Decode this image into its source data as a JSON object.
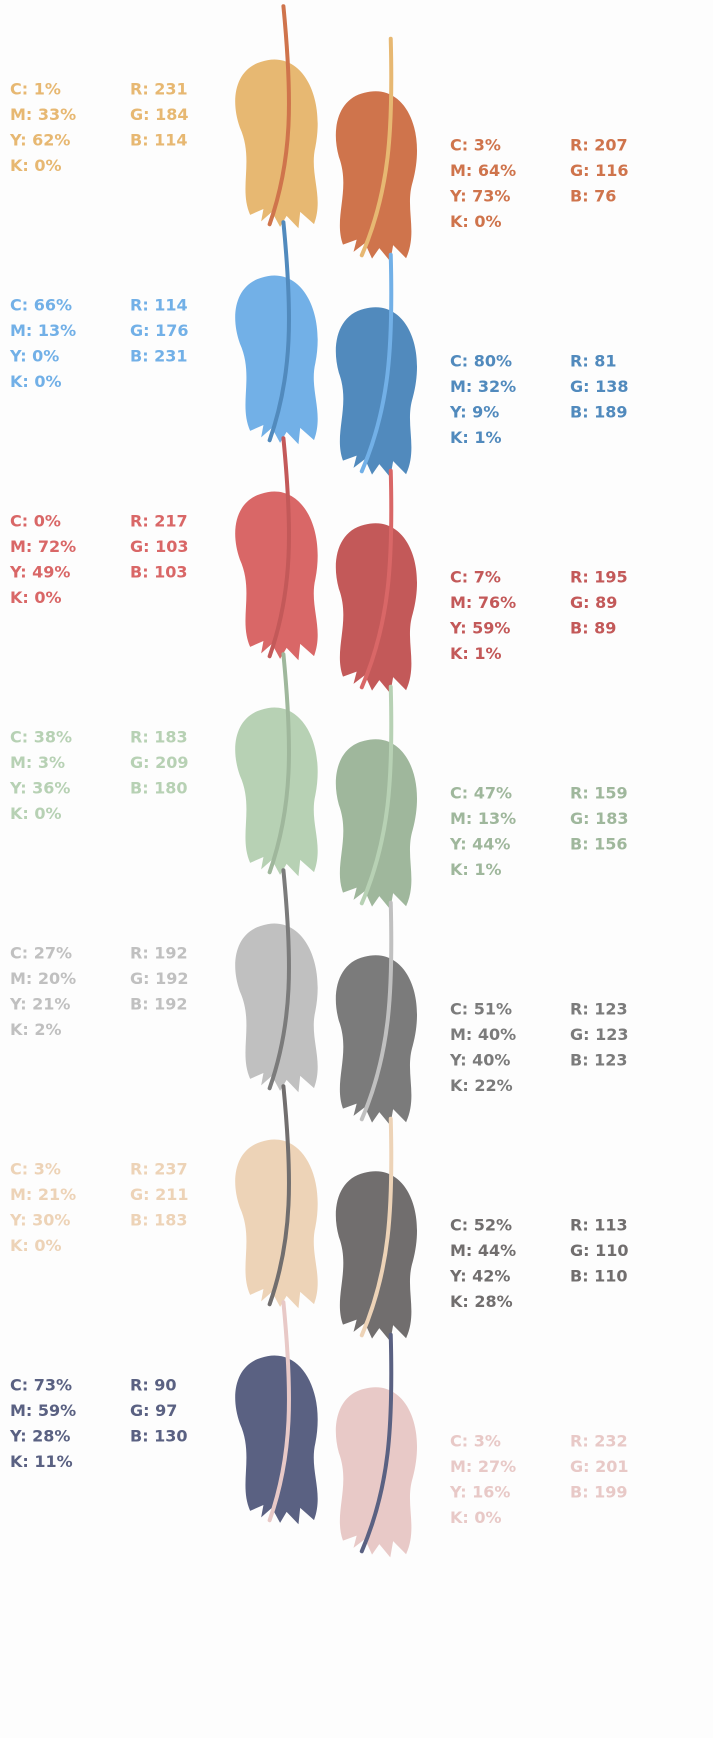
{
  "rows": [
    {
      "left": {
        "color": "#e7b872",
        "cmyk": [
          "C: 1%",
          "M: 33%",
          "Y: 62%",
          "K: 0%"
        ],
        "rgb": [
          "R: 231",
          "G: 184",
          "B: 114"
        ]
      },
      "right": {
        "color": "#cf744c",
        "cmyk": [
          "C: 3%",
          "M: 64%",
          "Y: 73%",
          "K: 0%"
        ],
        "rgb": [
          "R: 207",
          "G: 116",
          "B: 76"
        ]
      }
    },
    {
      "left": {
        "color": "#72b0e7",
        "cmyk": [
          "C: 66%",
          "M: 13%",
          "Y: 0%",
          "K: 0%"
        ],
        "rgb": [
          "R: 114",
          "G: 176",
          "B: 231"
        ]
      },
      "right": {
        "color": "#518abd",
        "cmyk": [
          "C: 80%",
          "M: 32%",
          "Y: 9%",
          "K: 1%"
        ],
        "rgb": [
          "R: 81",
          "G: 138",
          "B: 189"
        ]
      }
    },
    {
      "left": {
        "color": "#d96767",
        "cmyk": [
          "C: 0%",
          "M: 72%",
          "Y: 49%",
          "K: 0%"
        ],
        "rgb": [
          "R: 217",
          "G: 103",
          "B: 103"
        ]
      },
      "right": {
        "color": "#c35959",
        "cmyk": [
          "C: 7%",
          "M: 76%",
          "Y: 59%",
          "K: 1%"
        ],
        "rgb": [
          "R: 195",
          "G: 89",
          "B: 89"
        ]
      }
    },
    {
      "left": {
        "color": "#b7d1b4",
        "cmyk": [
          "C: 38%",
          "M: 3%",
          "Y: 36%",
          "K: 0%"
        ],
        "rgb": [
          "R: 183",
          "G: 209",
          "B: 180"
        ]
      },
      "right": {
        "color": "#9fb79c",
        "cmyk": [
          "C: 47%",
          "M: 13%",
          "Y: 44%",
          "K: 1%"
        ],
        "rgb": [
          "R: 159",
          "G: 183",
          "B: 156"
        ]
      }
    },
    {
      "left": {
        "color": "#c0c0c0",
        "cmyk": [
          "C: 27%",
          "M: 20%",
          "Y: 21%",
          "K: 2%"
        ],
        "rgb": [
          "R: 192",
          "G: 192",
          "B: 192"
        ]
      },
      "right": {
        "color": "#7b7b7b",
        "cmyk": [
          "C: 51%",
          "M: 40%",
          "Y: 40%",
          "K: 22%"
        ],
        "rgb": [
          "R: 123",
          "G: 123",
          "B: 123"
        ]
      }
    },
    {
      "left": {
        "color": "#edd3b7",
        "cmyk": [
          "C: 3%",
          "M: 21%",
          "Y: 30%",
          "K: 0%"
        ],
        "rgb": [
          "R: 237",
          "G: 211",
          "B: 183"
        ]
      },
      "right": {
        "color": "#716e6e",
        "cmyk": [
          "C: 52%",
          "M: 44%",
          "Y: 42%",
          "K: 28%"
        ],
        "rgb": [
          "R: 113",
          "G: 110",
          "B: 110"
        ]
      }
    },
    {
      "left": {
        "color": "#5a6182",
        "cmyk": [
          "C: 73%",
          "M: 59%",
          "Y: 28%",
          "K: 11%"
        ],
        "rgb": [
          "R: 90",
          "G: 97",
          "B: 130"
        ]
      },
      "right": {
        "color": "#e8c9c7",
        "cmyk": [
          "C: 3%",
          "M: 27%",
          "Y: 16%",
          "K: 0%"
        ],
        "rgb": [
          "R: 232",
          "G: 201",
          "B: 199"
        ]
      }
    }
  ]
}
